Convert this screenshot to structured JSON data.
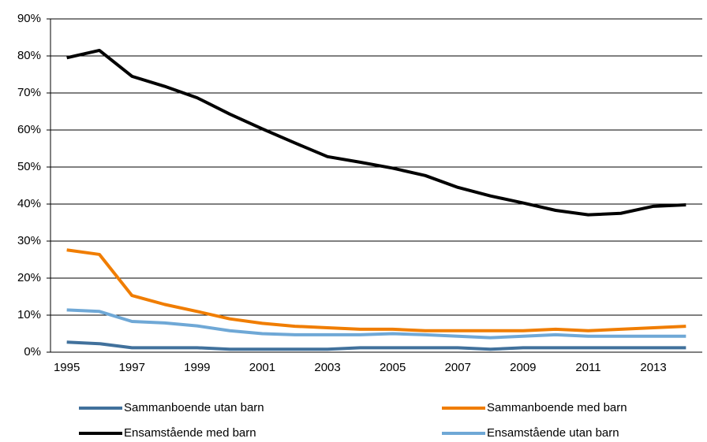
{
  "chart_data": {
    "type": "line",
    "categories": [
      "1995",
      null,
      "1997",
      null,
      "1999",
      null,
      "2001",
      null,
      "2003",
      null,
      "2005",
      null,
      "2007",
      null,
      "2009",
      null,
      "2011",
      null,
      "2013",
      null
    ],
    "series": [
      {
        "name": "Sammanboende utan barn",
        "color": "#41719c",
        "values": [
          2.7,
          2.3,
          1.2,
          1.2,
          1.2,
          0.8,
          0.8,
          0.8,
          0.8,
          1.2,
          1.2,
          1.2,
          1.2,
          0.8,
          1.2,
          1.2,
          1.2,
          1.2,
          1.2,
          1.2
        ]
      },
      {
        "name": "Sammanboende med barn",
        "color": "#f07d00",
        "values": [
          27.6,
          26.4,
          15.3,
          12.9,
          11.0,
          9.0,
          7.8,
          7.0,
          6.6,
          6.2,
          6.2,
          5.8,
          5.8,
          5.8,
          5.8,
          6.2,
          5.8,
          6.2,
          6.6,
          7.0
        ]
      },
      {
        "name": "Ensamstående med barn",
        "color": "#000000",
        "values": [
          79.5,
          81.5,
          74.5,
          71.8,
          68.7,
          64.3,
          60.3,
          56.5,
          52.8,
          51.3,
          49.7,
          47.7,
          44.5,
          42.2,
          40.3,
          38.3,
          37.1,
          37.5,
          39.4,
          39.8
        ]
      },
      {
        "name": "Ensamstående utan barn",
        "color": "#6fa8d6",
        "values": [
          11.4,
          11.0,
          8.3,
          7.9,
          7.1,
          5.8,
          5.0,
          4.7,
          4.7,
          4.7,
          5.0,
          4.7,
          4.3,
          3.9,
          4.3,
          4.7,
          4.3,
          4.3,
          4.3,
          4.3
        ]
      }
    ],
    "ylim": [
      0,
      90
    ],
    "yticks": [
      {
        "value": 0,
        "label": "0%"
      },
      {
        "value": 10,
        "label": "10%"
      },
      {
        "value": 20,
        "label": "20%"
      },
      {
        "value": 30,
        "label": "30%"
      },
      {
        "value": 40,
        "label": "40%"
      },
      {
        "value": 50,
        "label": "50%"
      },
      {
        "value": 60,
        "label": "60%"
      },
      {
        "value": 70,
        "label": "70%"
      },
      {
        "value": 80,
        "label": "80%"
      },
      {
        "value": 90,
        "label": "90%"
      }
    ],
    "grid": true,
    "legend": "bottom"
  }
}
